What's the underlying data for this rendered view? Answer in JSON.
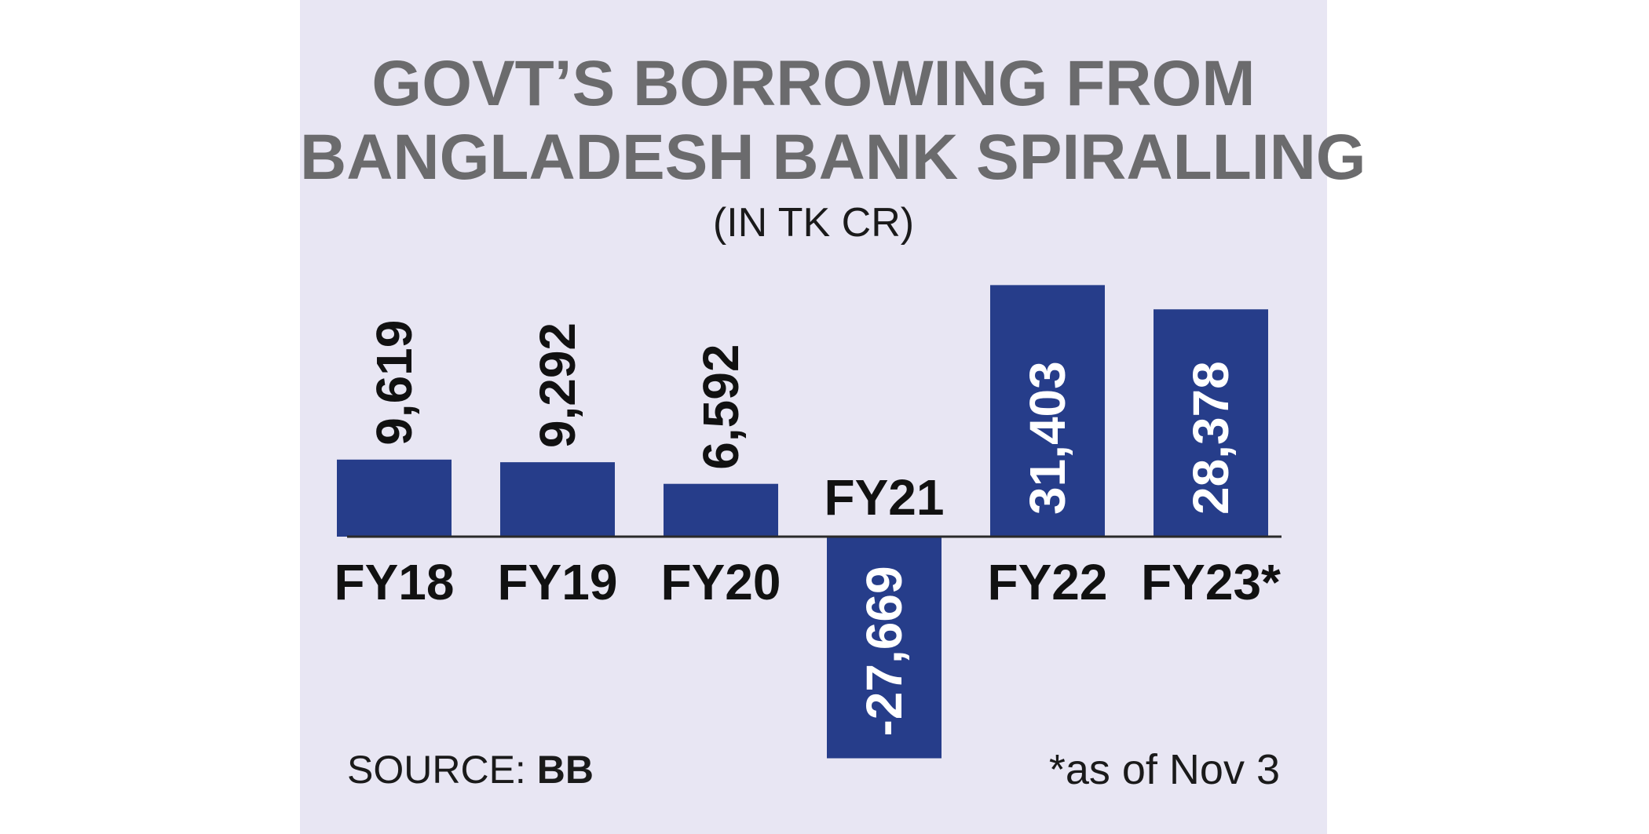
{
  "chart_data": {
    "type": "bar",
    "title_lines": [
      "GOVT’S BORROWING FROM",
      "BANGLADESH BANK SPIRALLING"
    ],
    "subtitle": "(IN TK CR)",
    "categories": [
      "FY18",
      "FY19",
      "FY20",
      "FY21",
      "FY22",
      "FY23*"
    ],
    "values": [
      9619,
      9292,
      6592,
      -27669,
      31403,
      28378
    ],
    "value_labels": [
      "9,619",
      "9,292",
      "6,592",
      "-27,669",
      "31,403",
      "28,378"
    ],
    "ylim": [
      -28000,
      32000
    ],
    "grid": false,
    "bar_color": "#263d8a",
    "xlabel": "",
    "ylabel": ""
  },
  "source": {
    "label": "SOURCE:",
    "value": "BB"
  },
  "footnote": "*as of Nov 3"
}
